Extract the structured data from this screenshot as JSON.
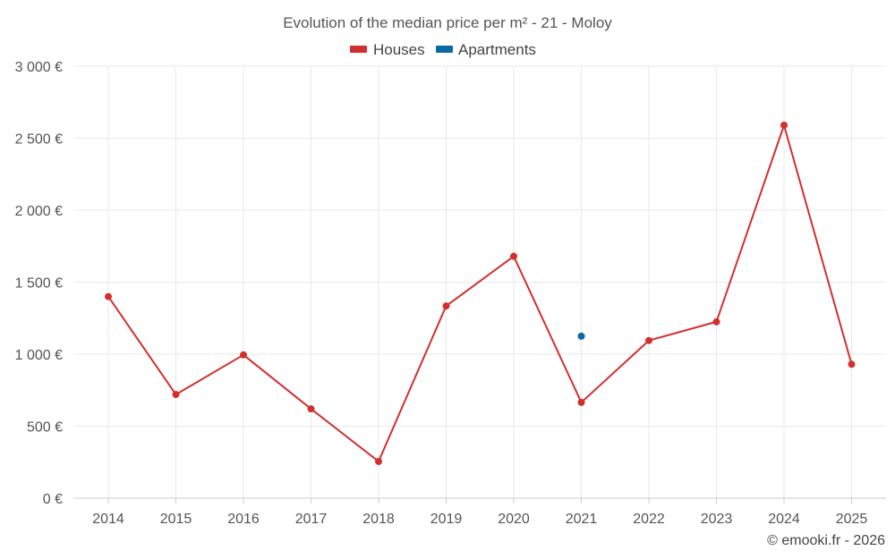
{
  "chart_data": {
    "type": "line",
    "title": "Evolution of the median price per m² - 21 - Moloy",
    "categories": [
      "2014",
      "2015",
      "2016",
      "2017",
      "2018",
      "2019",
      "2020",
      "2021",
      "2022",
      "2023",
      "2024",
      "2025"
    ],
    "series": [
      {
        "name": "Houses",
        "color": "#d32f2f",
        "values": [
          1400,
          720,
          995,
          620,
          255,
          1335,
          1680,
          665,
          1095,
          1225,
          2590,
          930
        ]
      },
      {
        "name": "Apartments",
        "color": "#0a6aa1",
        "values": [
          null,
          null,
          null,
          null,
          null,
          null,
          null,
          1125,
          null,
          null,
          null,
          null
        ]
      }
    ],
    "ylim": [
      0,
      3000
    ],
    "yticks": [
      0,
      500,
      1000,
      1500,
      2000,
      2500,
      3000
    ],
    "ytick_labels": [
      "0 €",
      "500 €",
      "1 000 €",
      "1 500 €",
      "2 000 €",
      "2 500 €",
      "3 000 €"
    ],
    "xlabel": "",
    "ylabel": "",
    "grid": true,
    "legend_position": "top-center"
  },
  "credit": "© emooki.fr - 2026"
}
